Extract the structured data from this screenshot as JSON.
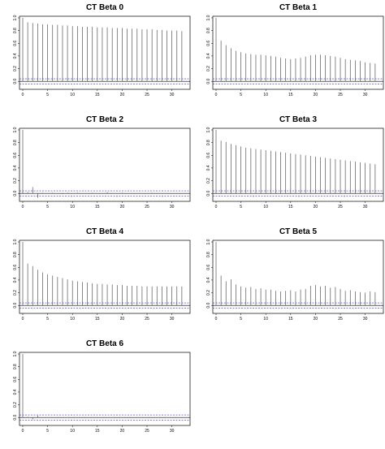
{
  "chart_data": [
    {
      "type": "bar",
      "title": "CT Beta 0",
      "x": [
        0,
        1,
        2,
        3,
        4,
        5,
        6,
        7,
        8,
        9,
        10,
        11,
        12,
        13,
        14,
        15,
        16,
        17,
        18,
        19,
        20,
        21,
        22,
        23,
        24,
        25,
        26,
        27,
        28,
        29,
        30,
        31,
        32
      ],
      "values": [
        1.0,
        0.93,
        0.92,
        0.91,
        0.9,
        0.9,
        0.89,
        0.89,
        0.88,
        0.88,
        0.87,
        0.87,
        0.86,
        0.86,
        0.86,
        0.85,
        0.85,
        0.85,
        0.84,
        0.84,
        0.84,
        0.83,
        0.83,
        0.83,
        0.82,
        0.82,
        0.82,
        0.81,
        0.81,
        0.8,
        0.8,
        0.8,
        0.79
      ],
      "conf_band": [
        -0.04,
        0.04
      ],
      "xlim": [
        0,
        33
      ],
      "ylim": [
        -0.1,
        1.0
      ],
      "x_ticks": [
        0,
        5,
        10,
        15,
        20,
        25,
        30
      ],
      "y_ticks": [
        0.0,
        0.2,
        0.4,
        0.6,
        0.8,
        1.0
      ],
      "x_tick_labels": [
        "0",
        "5",
        "10",
        "15",
        "20",
        "25",
        "30"
      ],
      "y_tick_labels": [
        "0.0",
        "0.2",
        "0.4",
        "0.6",
        "0.8",
        "1.0"
      ],
      "grid": false
    },
    {
      "type": "bar",
      "title": "CT Beta 1",
      "x": [
        0,
        1,
        2,
        3,
        4,
        5,
        6,
        7,
        8,
        9,
        10,
        11,
        12,
        13,
        14,
        15,
        16,
        17,
        18,
        19,
        20,
        21,
        22,
        23,
        24,
        25,
        26,
        27,
        28,
        29,
        30,
        31,
        32
      ],
      "values": [
        1.0,
        0.64,
        0.57,
        0.52,
        0.48,
        0.46,
        0.44,
        0.43,
        0.42,
        0.42,
        0.41,
        0.4,
        0.39,
        0.37,
        0.36,
        0.35,
        0.36,
        0.37,
        0.39,
        0.41,
        0.42,
        0.42,
        0.41,
        0.4,
        0.39,
        0.37,
        0.35,
        0.34,
        0.33,
        0.32,
        0.3,
        0.29,
        0.28
      ],
      "conf_band": [
        -0.04,
        0.04
      ],
      "xlim": [
        0,
        33
      ],
      "ylim": [
        -0.1,
        1.0
      ],
      "x_ticks": [
        0,
        5,
        10,
        15,
        20,
        25,
        30
      ],
      "y_ticks": [
        0.0,
        0.2,
        0.4,
        0.6,
        0.8,
        1.0
      ],
      "x_tick_labels": [
        "0",
        "5",
        "10",
        "15",
        "20",
        "25",
        "30"
      ],
      "y_tick_labels": [
        "0.0",
        "0.2",
        "0.4",
        "0.6",
        "0.8",
        "1.0"
      ],
      "grid": false
    },
    {
      "type": "bar",
      "title": "CT Beta 2",
      "x": [
        0,
        1,
        2,
        3,
        4,
        5,
        6,
        7,
        8,
        9,
        10,
        11,
        12,
        13,
        14,
        15,
        16,
        17,
        18,
        19,
        20,
        21,
        22,
        23,
        24,
        25,
        26,
        27,
        28,
        29,
        30,
        31,
        32
      ],
      "values": [
        1.0,
        0.02,
        0.1,
        -0.07,
        0.01,
        0.0,
        0.01,
        0.0,
        -0.01,
        0.01,
        0.0,
        0.01,
        0.0,
        0.0,
        0.01,
        0.0,
        0.0,
        0.02,
        0.0,
        0.0,
        0.01,
        0.0,
        0.0,
        0.0,
        0.0,
        0.0,
        0.01,
        0.0,
        0.0,
        0.0,
        0.0,
        0.0,
        0.0
      ],
      "conf_band": [
        -0.04,
        0.04
      ],
      "xlim": [
        0,
        33
      ],
      "ylim": [
        -0.1,
        1.0
      ],
      "x_ticks": [
        0,
        5,
        10,
        15,
        20,
        25,
        30
      ],
      "y_ticks": [
        0.0,
        0.2,
        0.4,
        0.6,
        0.8,
        1.0
      ],
      "x_tick_labels": [
        "0",
        "5",
        "10",
        "15",
        "20",
        "25",
        "30"
      ],
      "y_tick_labels": [
        "0.0",
        "0.2",
        "0.4",
        "0.6",
        "0.8",
        "1.0"
      ],
      "grid": false
    },
    {
      "type": "bar",
      "title": "CT Beta 3",
      "x": [
        0,
        1,
        2,
        3,
        4,
        5,
        6,
        7,
        8,
        9,
        10,
        11,
        12,
        13,
        14,
        15,
        16,
        17,
        18,
        19,
        20,
        21,
        22,
        23,
        24,
        25,
        26,
        27,
        28,
        29,
        30,
        31,
        32
      ],
      "values": [
        1.0,
        0.83,
        0.81,
        0.78,
        0.76,
        0.74,
        0.72,
        0.71,
        0.7,
        0.69,
        0.68,
        0.67,
        0.66,
        0.65,
        0.64,
        0.63,
        0.62,
        0.61,
        0.6,
        0.59,
        0.58,
        0.57,
        0.56,
        0.55,
        0.54,
        0.53,
        0.52,
        0.51,
        0.5,
        0.49,
        0.48,
        0.47,
        0.46
      ],
      "conf_band": [
        -0.04,
        0.04
      ],
      "xlim": [
        0,
        33
      ],
      "ylim": [
        -0.1,
        1.0
      ],
      "x_ticks": [
        0,
        5,
        10,
        15,
        20,
        25,
        30
      ],
      "y_ticks": [
        0.0,
        0.2,
        0.4,
        0.6,
        0.8,
        1.0
      ],
      "x_tick_labels": [
        "0",
        "5",
        "10",
        "15",
        "20",
        "25",
        "30"
      ],
      "y_tick_labels": [
        "0.0",
        "0.2",
        "0.4",
        "0.6",
        "0.8",
        "1.0"
      ],
      "grid": false
    },
    {
      "type": "bar",
      "title": "CT Beta 4",
      "x": [
        0,
        1,
        2,
        3,
        4,
        5,
        6,
        7,
        8,
        9,
        10,
        11,
        12,
        13,
        14,
        15,
        16,
        17,
        18,
        19,
        20,
        21,
        22,
        23,
        24,
        25,
        26,
        27,
        28,
        29,
        30,
        31,
        32
      ],
      "values": [
        1.0,
        0.66,
        0.62,
        0.56,
        0.52,
        0.49,
        0.47,
        0.45,
        0.43,
        0.41,
        0.39,
        0.38,
        0.37,
        0.36,
        0.35,
        0.34,
        0.34,
        0.33,
        0.33,
        0.32,
        0.32,
        0.31,
        0.31,
        0.31,
        0.3,
        0.3,
        0.3,
        0.3,
        0.3,
        0.3,
        0.3,
        0.3,
        0.3
      ],
      "conf_band": [
        -0.04,
        0.04
      ],
      "xlim": [
        0,
        33
      ],
      "ylim": [
        -0.1,
        1.0
      ],
      "x_ticks": [
        0,
        5,
        10,
        15,
        20,
        25,
        30
      ],
      "y_ticks": [
        0.0,
        0.2,
        0.4,
        0.6,
        0.8,
        1.0
      ],
      "x_tick_labels": [
        "0",
        "5",
        "10",
        "15",
        "20",
        "25",
        "30"
      ],
      "y_tick_labels": [
        "0.0",
        "0.2",
        "0.4",
        "0.6",
        "0.8",
        "1.0"
      ],
      "grid": false
    },
    {
      "type": "bar",
      "title": "CT Beta 5",
      "x": [
        0,
        1,
        2,
        3,
        4,
        5,
        6,
        7,
        8,
        9,
        10,
        11,
        12,
        13,
        14,
        15,
        16,
        17,
        18,
        19,
        20,
        21,
        22,
        23,
        24,
        25,
        26,
        27,
        28,
        29,
        30,
        31,
        32
      ],
      "values": [
        1.0,
        0.47,
        0.38,
        0.41,
        0.33,
        0.3,
        0.28,
        0.29,
        0.26,
        0.27,
        0.25,
        0.25,
        0.23,
        0.22,
        0.23,
        0.24,
        0.22,
        0.25,
        0.26,
        0.31,
        0.32,
        0.3,
        0.31,
        0.28,
        0.29,
        0.26,
        0.23,
        0.24,
        0.22,
        0.21,
        0.2,
        0.22,
        0.21
      ],
      "conf_band": [
        -0.04,
        0.04
      ],
      "xlim": [
        0,
        33
      ],
      "ylim": [
        -0.1,
        1.0
      ],
      "x_ticks": [
        0,
        5,
        10,
        15,
        20,
        25,
        30
      ],
      "y_ticks": [
        0.0,
        0.2,
        0.4,
        0.6,
        0.8,
        1.0
      ],
      "x_tick_labels": [
        "0",
        "5",
        "10",
        "15",
        "20",
        "25",
        "30"
      ],
      "y_tick_labels": [
        "0.0",
        "0.2",
        "0.4",
        "0.6",
        "0.8",
        "1.0"
      ],
      "grid": false
    },
    {
      "type": "bar",
      "title": "CT Beta 6",
      "x": [
        0,
        1,
        2,
        3,
        4,
        5,
        6,
        7,
        8,
        9,
        10,
        11,
        12,
        13,
        14,
        15,
        16,
        17,
        18,
        19,
        20,
        21,
        22,
        23,
        24,
        25,
        26,
        27,
        28,
        29,
        30,
        31,
        32
      ],
      "values": [
        1.0,
        0.01,
        -0.03,
        0.03,
        0.0,
        0.0,
        0.0,
        0.0,
        0.0,
        0.0,
        0.0,
        0.0,
        0.0,
        0.0,
        0.0,
        0.0,
        0.0,
        0.0,
        0.0,
        0.0,
        0.0,
        0.0,
        0.0,
        0.0,
        0.0,
        0.0,
        0.0,
        0.0,
        0.0,
        0.0,
        0.0,
        0.0,
        0.0
      ],
      "conf_band": [
        -0.04,
        0.04
      ],
      "xlim": [
        0,
        33
      ],
      "ylim": [
        -0.1,
        1.0
      ],
      "x_ticks": [
        0,
        5,
        10,
        15,
        20,
        25,
        30
      ],
      "y_ticks": [
        0.0,
        0.2,
        0.4,
        0.6,
        0.8,
        1.0
      ],
      "x_tick_labels": [
        "0",
        "5",
        "10",
        "15",
        "20",
        "25",
        "30"
      ],
      "y_tick_labels": [
        "0.0",
        "0.2",
        "0.4",
        "0.6",
        "0.8",
        "1.0"
      ],
      "grid": false
    }
  ],
  "colors": {
    "bars": "#555555",
    "axes": "#000000",
    "conf_band": "#3333bb",
    "zero_line": "#000000"
  }
}
